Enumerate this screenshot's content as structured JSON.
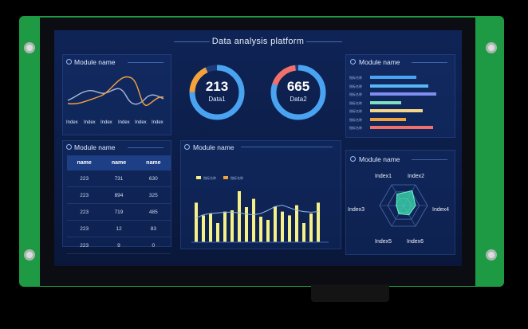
{
  "dashboard": {
    "title": "Data analysis platform"
  },
  "panels": {
    "line_panel": {
      "title": "Module name",
      "x_labels": [
        "Index",
        "Index",
        "Index",
        "Index",
        "Index",
        "Index"
      ]
    },
    "table_panel": {
      "title": "Module name",
      "headers": [
        "name",
        "name",
        "name"
      ],
      "rows": [
        [
          "223",
          "731",
          "630"
        ],
        [
          "223",
          "894",
          "325"
        ],
        [
          "223",
          "719",
          "485"
        ],
        [
          "223",
          "12",
          "83"
        ],
        [
          "223",
          "9",
          "0"
        ]
      ]
    },
    "bar_panel": {
      "title": "Module name",
      "legend": [
        "指标名称",
        "指标名称"
      ]
    },
    "hbar_panel": {
      "title": "Module name",
      "labels": [
        "指标名称",
        "指标名称",
        "指标名称",
        "指标名称",
        "指标名称",
        "指标名称",
        "指标名称"
      ],
      "values": [
        0.62,
        0.78,
        0.88,
        0.42,
        0.7,
        0.48,
        0.84
      ]
    },
    "radar_panel": {
      "title": "Module name",
      "axes": [
        "Index1",
        "Index2",
        "Index4",
        "Index6",
        "Index5",
        "Index3"
      ],
      "values": [
        0.55,
        0.72,
        0.5,
        0.45,
        0.4,
        0.3
      ]
    }
  },
  "gauges": [
    {
      "value": "213",
      "label": "Data1",
      "fraction": 0.75
    },
    {
      "value": "665",
      "label": "Data2",
      "fraction": 0.8
    }
  ],
  "chart_data": [
    {
      "type": "line",
      "x": [
        "Index",
        "Index",
        "Index",
        "Index",
        "Index",
        "Index"
      ],
      "series": [
        {
          "values": [
            52,
            88,
            46,
            95,
            40,
            72
          ]
        },
        {
          "values": [
            40,
            35,
            62,
            20,
            58,
            30
          ]
        }
      ]
    },
    {
      "type": "bar",
      "categories": [
        "",
        "",
        "",
        "",
        "",
        "",
        "",
        "",
        "",
        "",
        "",
        "",
        "",
        "",
        "",
        "",
        "",
        ""
      ],
      "values": [
        62,
        42,
        45,
        30,
        48,
        50,
        80,
        55,
        68,
        40,
        35,
        56,
        48,
        42,
        58,
        30,
        45,
        62
      ],
      "line_values": [
        38,
        43,
        45,
        46,
        47,
        47,
        46,
        44,
        43,
        45,
        50,
        56,
        58,
        54,
        50,
        48,
        47,
        48
      ]
    }
  ],
  "colors": {
    "accent_orange": "#f4a23c",
    "accent_blue": "#4aa3f0",
    "accent_red": "#f2706a",
    "bar_yellow": "#f5f088",
    "radar_fill": "#3fe0b0"
  }
}
